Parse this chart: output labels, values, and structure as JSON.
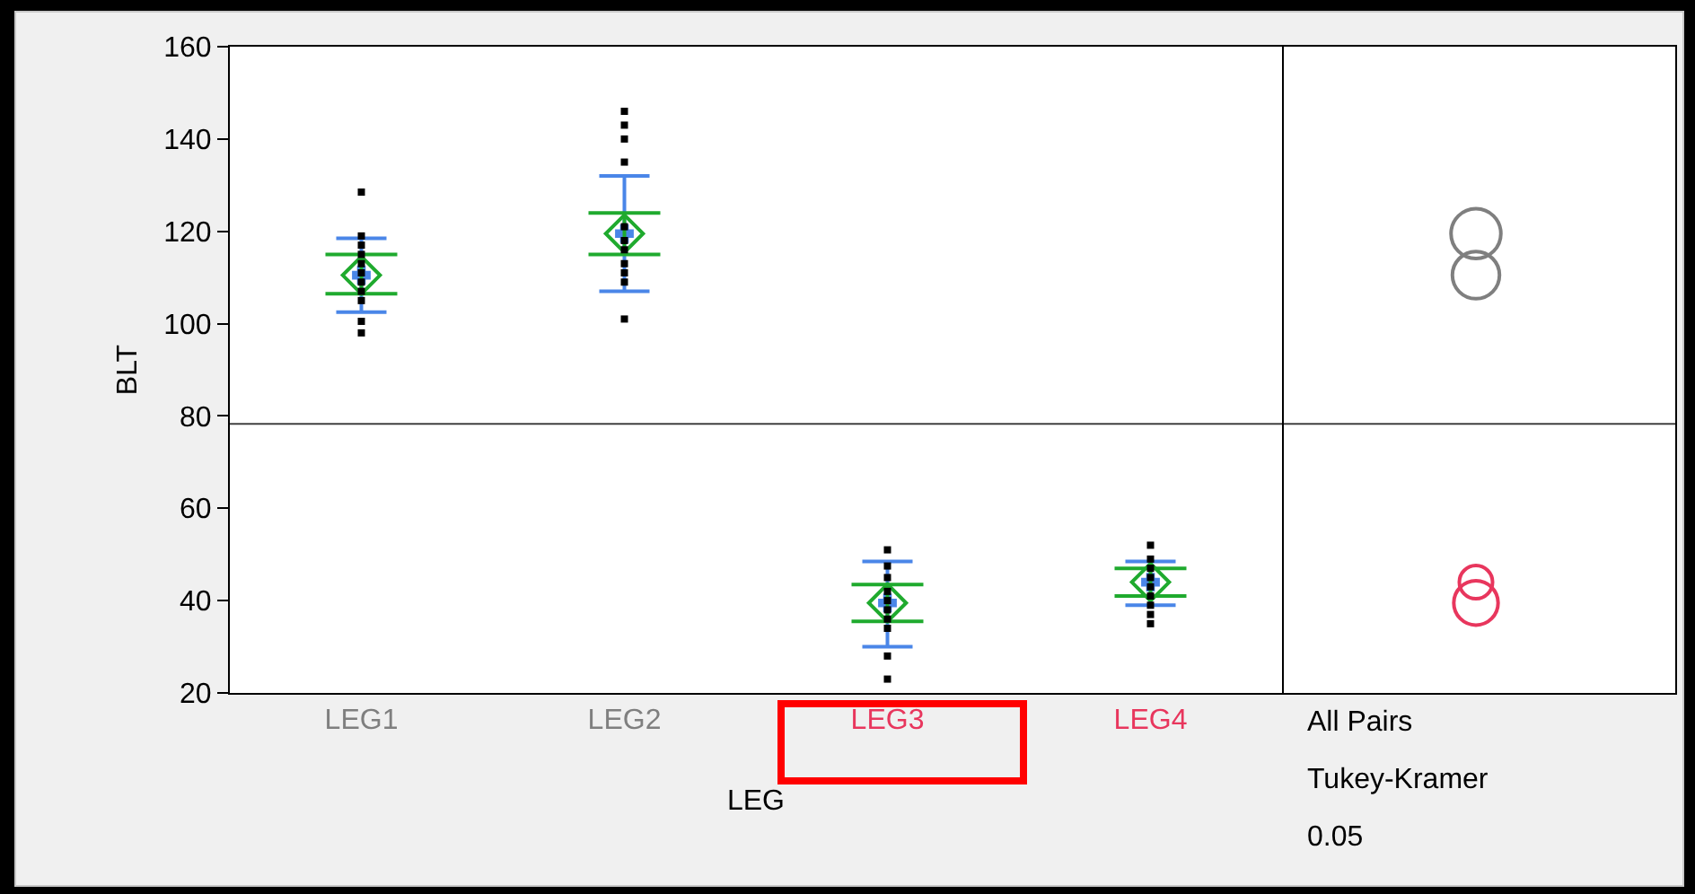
{
  "chart_data": [
    {
      "type": "scatter",
      "xlabel": "LEG",
      "ylabel": "BLT",
      "categories": [
        "LEG1",
        "LEG2",
        "LEG3",
        "LEG4"
      ],
      "ylim": [
        20,
        160
      ],
      "yticks": [
        20,
        40,
        60,
        80,
        100,
        120,
        140,
        160
      ],
      "grid": false,
      "ref_lines": [
        {
          "axis": "y",
          "value": 78.3,
          "color": "#404040"
        }
      ],
      "series": [
        {
          "type": "scatter",
          "color": "#000000",
          "marker": "square",
          "x": [
            "LEG1",
            "LEG1",
            "LEG1",
            "LEG1",
            "LEG1",
            "LEG1",
            "LEG1",
            "LEG1",
            "LEG1",
            "LEG1",
            "LEG1",
            "LEG2",
            "LEG2",
            "LEG2",
            "LEG2",
            "LEG2",
            "LEG2",
            "LEG2",
            "LEG2",
            "LEG2",
            "LEG2",
            "LEG2",
            "LEG3",
            "LEG3",
            "LEG3",
            "LEG3",
            "LEG3",
            "LEG3",
            "LEG3",
            "LEG3",
            "LEG3",
            "LEG3",
            "LEG4",
            "LEG4",
            "LEG4",
            "LEG4",
            "LEG4",
            "LEG4",
            "LEG4",
            "LEG4",
            "LEG4"
          ],
          "values": [
            128.5,
            119,
            117,
            115,
            113,
            111,
            109,
            107,
            105,
            100.5,
            98,
            146,
            143,
            140,
            135,
            121,
            118,
            116,
            113,
            111,
            109,
            101,
            51,
            47.5,
            45,
            42,
            40,
            38,
            36,
            34,
            28,
            23,
            52,
            49,
            47,
            45,
            43,
            41,
            39,
            37,
            35
          ]
        },
        {
          "type": "scatter",
          "color": "#1faa2e",
          "marker": "diamond",
          "values": [
            110.5,
            119.5,
            39.5,
            44
          ],
          "errors": [
            [
              106.5,
              115
            ],
            [
              115,
              124
            ],
            [
              35.5,
              43.5
            ],
            [
              41,
              47
            ]
          ]
        },
        {
          "type": "scatter",
          "color": "#4a86e8",
          "marker": "cross",
          "values": [
            110.5,
            119.5,
            39.5,
            44
          ],
          "errors": [
            [
              102.5,
              118.5
            ],
            [
              107,
              132
            ],
            [
              30,
              48.5
            ],
            [
              39,
              48.5
            ]
          ]
        }
      ]
    },
    {
      "type": "other",
      "colors": [
        "#7f7f7f",
        "#7f7f7f",
        "#e8365d",
        "#e8365d"
      ],
      "annotations": [
        "All Pairs",
        "Tukey-Kramer",
        "0.05"
      ]
    }
  ]
}
